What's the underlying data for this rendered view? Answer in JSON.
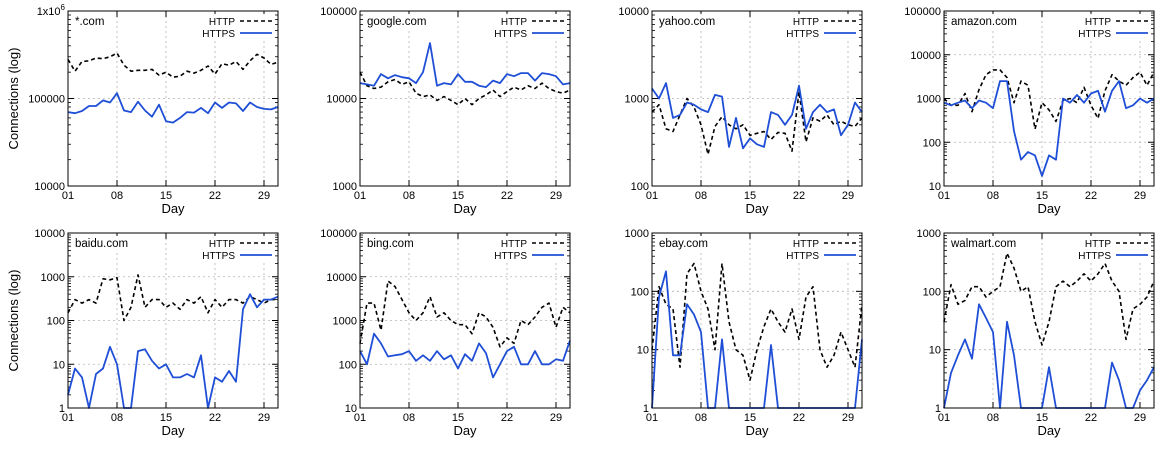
{
  "figure": {
    "y_axis_label": "Connections (log)",
    "x_axis_label": "Day",
    "x_ticks": [
      1,
      8,
      15,
      22,
      29
    ],
    "x_tick_labels": [
      "01",
      "08",
      "15",
      "22",
      "29"
    ],
    "legend": {
      "http": "HTTP",
      "https": "HTTPS"
    },
    "colors": {
      "http": "#000000",
      "https": "#1f4fd6",
      "grid": "#b4b4b4"
    }
  },
  "chart_data": [
    {
      "type": "line",
      "title": "*.com",
      "xlabel": "Day",
      "ylabel": "Connections (log)",
      "x": [
        1,
        2,
        3,
        4,
        5,
        6,
        7,
        8,
        9,
        10,
        11,
        12,
        13,
        14,
        15,
        16,
        17,
        18,
        19,
        20,
        21,
        22,
        23,
        24,
        25,
        26,
        27,
        28,
        29,
        30,
        31
      ],
      "xlim": [
        1,
        31
      ],
      "ylim": [
        10000,
        1000000
      ],
      "log_y": true,
      "y_ticks": [
        10000,
        100000,
        1000000
      ],
      "y_tick_labels": [
        "10000",
        "100000",
        "1x10^6"
      ],
      "series": [
        {
          "name": "HTTP",
          "style": "dashed",
          "values": [
            280000,
            205000,
            265000,
            270000,
            290000,
            285000,
            300000,
            330000,
            240000,
            205000,
            210000,
            210000,
            215000,
            185000,
            200000,
            175000,
            180000,
            205000,
            195000,
            210000,
            235000,
            190000,
            250000,
            240000,
            265000,
            215000,
            270000,
            320000,
            290000,
            245000,
            260000
          ]
        },
        {
          "name": "HTTPS",
          "style": "solid",
          "values": [
            70000,
            68000,
            72000,
            82000,
            82000,
            95000,
            90000,
            115000,
            73000,
            70000,
            92000,
            73000,
            62000,
            85000,
            55000,
            53000,
            60000,
            70000,
            69000,
            78000,
            68000,
            90000,
            78000,
            90000,
            88000,
            72000,
            90000,
            80000,
            76000,
            75000,
            80000
          ]
        }
      ]
    },
    {
      "type": "line",
      "title": "google.com",
      "xlabel": "Day",
      "ylabel": "",
      "x": [
        1,
        2,
        3,
        4,
        5,
        6,
        7,
        8,
        9,
        10,
        11,
        12,
        13,
        14,
        15,
        16,
        17,
        18,
        19,
        20,
        21,
        22,
        23,
        24,
        25,
        26,
        27,
        28,
        29,
        30,
        31
      ],
      "xlim": [
        1,
        31
      ],
      "ylim": [
        1000,
        100000
      ],
      "log_y": true,
      "y_ticks": [
        1000,
        10000,
        100000
      ],
      "y_tick_labels": [
        "1000",
        "10000",
        "100000"
      ],
      "series": [
        {
          "name": "HTTP",
          "style": "dashed",
          "values": [
            20000,
            14000,
            13000,
            13500,
            15500,
            16500,
            14500,
            15500,
            11500,
            10500,
            11000,
            9500,
            10500,
            9500,
            8500,
            10000,
            8500,
            10000,
            11000,
            12500,
            10500,
            12000,
            13500,
            12500,
            14000,
            13000,
            15000,
            13000,
            12000,
            11500,
            12500
          ]
        },
        {
          "name": "HTTPS",
          "style": "solid",
          "values": [
            15000,
            14500,
            14000,
            19000,
            17000,
            18500,
            17500,
            17000,
            15000,
            20000,
            43000,
            14000,
            15000,
            14500,
            19000,
            15500,
            15500,
            14000,
            13500,
            16000,
            15000,
            19000,
            18000,
            19500,
            19500,
            16000,
            19500,
            19000,
            18000,
            14500,
            15000
          ]
        }
      ]
    },
    {
      "type": "line",
      "title": "yahoo.com",
      "xlabel": "Day",
      "ylabel": "",
      "x": [
        1,
        2,
        3,
        4,
        5,
        6,
        7,
        8,
        9,
        10,
        11,
        12,
        13,
        14,
        15,
        16,
        17,
        18,
        19,
        20,
        21,
        22,
        23,
        24,
        25,
        26,
        27,
        28,
        29,
        30,
        31
      ],
      "xlim": [
        1,
        31
      ],
      "ylim": [
        100,
        10000
      ],
      "log_y": true,
      "y_ticks": [
        100,
        1000,
        10000
      ],
      "y_tick_labels": [
        "100",
        "1000",
        "10000"
      ],
      "series": [
        {
          "name": "HTTP",
          "style": "dashed",
          "values": [
            700,
            850,
            450,
            420,
            650,
            1000,
            800,
            500,
            230,
            480,
            620,
            500,
            450,
            500,
            380,
            400,
            420,
            340,
            410,
            400,
            250,
            1200,
            320,
            600,
            550,
            650,
            500,
            550,
            500,
            480,
            600
          ]
        },
        {
          "name": "HTTPS",
          "style": "solid",
          "values": [
            1300,
            1000,
            1500,
            600,
            650,
            900,
            850,
            750,
            700,
            1100,
            1050,
            280,
            600,
            270,
            350,
            300,
            280,
            700,
            650,
            500,
            650,
            1400,
            450,
            700,
            850,
            700,
            750,
            380,
            500,
            900,
            700
          ]
        }
      ]
    },
    {
      "type": "line",
      "title": "amazon.com",
      "xlabel": "Day",
      "ylabel": "",
      "x": [
        1,
        2,
        3,
        4,
        5,
        6,
        7,
        8,
        9,
        10,
        11,
        12,
        13,
        14,
        15,
        16,
        17,
        18,
        19,
        20,
        21,
        22,
        23,
        24,
        25,
        26,
        27,
        28,
        29,
        30,
        31
      ],
      "xlim": [
        1,
        31
      ],
      "ylim": [
        10,
        100000
      ],
      "log_y": true,
      "y_ticks": [
        10,
        100,
        1000,
        10000,
        100000
      ],
      "y_tick_labels": [
        "10",
        "100",
        "1000",
        "10000",
        "100000"
      ],
      "series": [
        {
          "name": "HTTP",
          "style": "dashed",
          "values": [
            1000,
            700,
            700,
            1300,
            500,
            1600,
            3500,
            4500,
            4500,
            3000,
            800,
            2500,
            2000,
            200,
            800,
            550,
            300,
            900,
            1000,
            800,
            1800,
            700,
            350,
            1500,
            3500,
            2500,
            2000,
            3000,
            4000,
            2000,
            4000
          ]
        },
        {
          "name": "HTTPS",
          "style": "solid",
          "values": [
            800,
            700,
            800,
            900,
            600,
            900,
            800,
            600,
            2500,
            2500,
            180,
            40,
            60,
            50,
            17,
            50,
            40,
            1000,
            800,
            1200,
            800,
            1300,
            1500,
            500,
            1500,
            2500,
            600,
            700,
            1000,
            800,
            1000
          ]
        }
      ]
    },
    {
      "type": "line",
      "title": "baidu.com",
      "xlabel": "Day",
      "ylabel": "Connections (log)",
      "x": [
        1,
        2,
        3,
        4,
        5,
        6,
        7,
        8,
        9,
        10,
        11,
        12,
        13,
        14,
        15,
        16,
        17,
        18,
        19,
        20,
        21,
        22,
        23,
        24,
        25,
        26,
        27,
        28,
        29,
        30,
        31
      ],
      "xlim": [
        1,
        31
      ],
      "ylim": [
        1,
        10000
      ],
      "log_y": true,
      "y_ticks": [
        1,
        10,
        100,
        1000,
        10000
      ],
      "y_tick_labels": [
        "1",
        "10",
        "100",
        "1000",
        "10000"
      ],
      "series": [
        {
          "name": "HTTP",
          "style": "dashed",
          "values": [
            150,
            300,
            250,
            300,
            250,
            900,
            850,
            950,
            100,
            200,
            1100,
            200,
            300,
            300,
            200,
            250,
            180,
            300,
            250,
            350,
            150,
            300,
            200,
            300,
            300,
            250,
            350,
            300,
            250,
            300,
            300
          ]
        },
        {
          "name": "HTTPS",
          "style": "solid",
          "values": [
            2,
            8,
            5,
            1,
            6,
            8,
            25,
            10,
            1,
            1,
            20,
            22,
            12,
            8,
            10,
            5,
            5,
            6,
            5,
            16,
            1,
            5,
            4,
            7,
            4,
            180,
            400,
            200,
            300,
            300,
            350
          ]
        }
      ]
    },
    {
      "type": "line",
      "title": "bing.com",
      "xlabel": "Day",
      "ylabel": "",
      "x": [
        1,
        2,
        3,
        4,
        5,
        6,
        7,
        8,
        9,
        10,
        11,
        12,
        13,
        14,
        15,
        16,
        17,
        18,
        19,
        20,
        21,
        22,
        23,
        24,
        25,
        26,
        27,
        28,
        29,
        30,
        31
      ],
      "xlim": [
        1,
        31
      ],
      "ylim": [
        10,
        100000
      ],
      "log_y": true,
      "y_ticks": [
        10,
        100,
        1000,
        10000,
        100000
      ],
      "y_tick_labels": [
        "10",
        "100",
        "1000",
        "10000",
        "100000"
      ],
      "series": [
        {
          "name": "HTTP",
          "style": "dashed",
          "values": [
            300,
            2500,
            2500,
            600,
            8000,
            6000,
            3000,
            1500,
            1000,
            1500,
            3500,
            1200,
            1500,
            1000,
            800,
            800,
            500,
            1500,
            1200,
            700,
            250,
            400,
            300,
            1000,
            800,
            1200,
            2000,
            2500,
            700,
            2000,
            1500
          ]
        },
        {
          "name": "HTTPS",
          "style": "solid",
          "values": [
            200,
            100,
            500,
            300,
            150,
            160,
            170,
            200,
            120,
            160,
            120,
            200,
            130,
            160,
            80,
            170,
            120,
            300,
            180,
            50,
            100,
            200,
            250,
            100,
            100,
            200,
            100,
            100,
            130,
            120,
            350
          ]
        }
      ]
    },
    {
      "type": "line",
      "title": "ebay.com",
      "xlabel": "Day",
      "ylabel": "",
      "x": [
        1,
        2,
        3,
        4,
        5,
        6,
        7,
        8,
        9,
        10,
        11,
        12,
        13,
        14,
        15,
        16,
        17,
        18,
        19,
        20,
        21,
        22,
        23,
        24,
        25,
        26,
        27,
        28,
        29,
        30,
        31
      ],
      "xlim": [
        1,
        31
      ],
      "ylim": [
        1,
        1000
      ],
      "log_y": true,
      "y_ticks": [
        1,
        10,
        100,
        1000
      ],
      "y_tick_labels": [
        "1",
        "10",
        "100",
        "1000"
      ],
      "series": [
        {
          "name": "HTTP",
          "style": "dashed",
          "values": [
            10,
            120,
            60,
            50,
            5,
            200,
            300,
            100,
            50,
            10,
            300,
            30,
            10,
            8,
            3,
            10,
            25,
            50,
            30,
            20,
            50,
            15,
            80,
            120,
            10,
            5,
            8,
            20,
            10,
            5,
            60
          ]
        },
        {
          "name": "HTTPS",
          "style": "solid",
          "values": [
            1,
            80,
            220,
            8,
            8,
            60,
            40,
            20,
            1,
            1,
            15,
            1,
            1,
            1,
            1,
            1,
            1,
            12,
            1,
            1,
            1,
            1,
            1,
            1,
            1,
            1,
            1,
            1,
            1,
            1,
            15
          ]
        }
      ]
    },
    {
      "type": "line",
      "title": "walmart.com",
      "xlabel": "Day",
      "ylabel": "",
      "x": [
        1,
        2,
        3,
        4,
        5,
        6,
        7,
        8,
        9,
        10,
        11,
        12,
        13,
        14,
        15,
        16,
        17,
        18,
        19,
        20,
        21,
        22,
        23,
        24,
        25,
        26,
        27,
        28,
        29,
        30,
        31
      ],
      "xlim": [
        1,
        31
      ],
      "ylim": [
        1,
        1000
      ],
      "log_y": true,
      "y_ticks": [
        1,
        10,
        100,
        1000
      ],
      "y_tick_labels": [
        "1",
        "10",
        "100",
        "1000"
      ],
      "series": [
        {
          "name": "HTTP",
          "style": "dashed",
          "values": [
            30,
            130,
            60,
            70,
            120,
            120,
            80,
            100,
            120,
            450,
            250,
            100,
            120,
            30,
            12,
            30,
            120,
            150,
            120,
            150,
            200,
            150,
            200,
            300,
            150,
            100,
            15,
            50,
            60,
            80,
            150
          ]
        },
        {
          "name": "HTTPS",
          "style": "solid",
          "values": [
            1,
            4,
            8,
            15,
            7,
            60,
            35,
            20,
            1,
            30,
            8,
            1,
            1,
            1,
            1,
            5,
            1,
            1,
            1,
            1,
            1,
            1,
            1,
            1,
            6,
            3,
            1,
            1,
            2,
            3,
            5
          ]
        }
      ]
    }
  ]
}
